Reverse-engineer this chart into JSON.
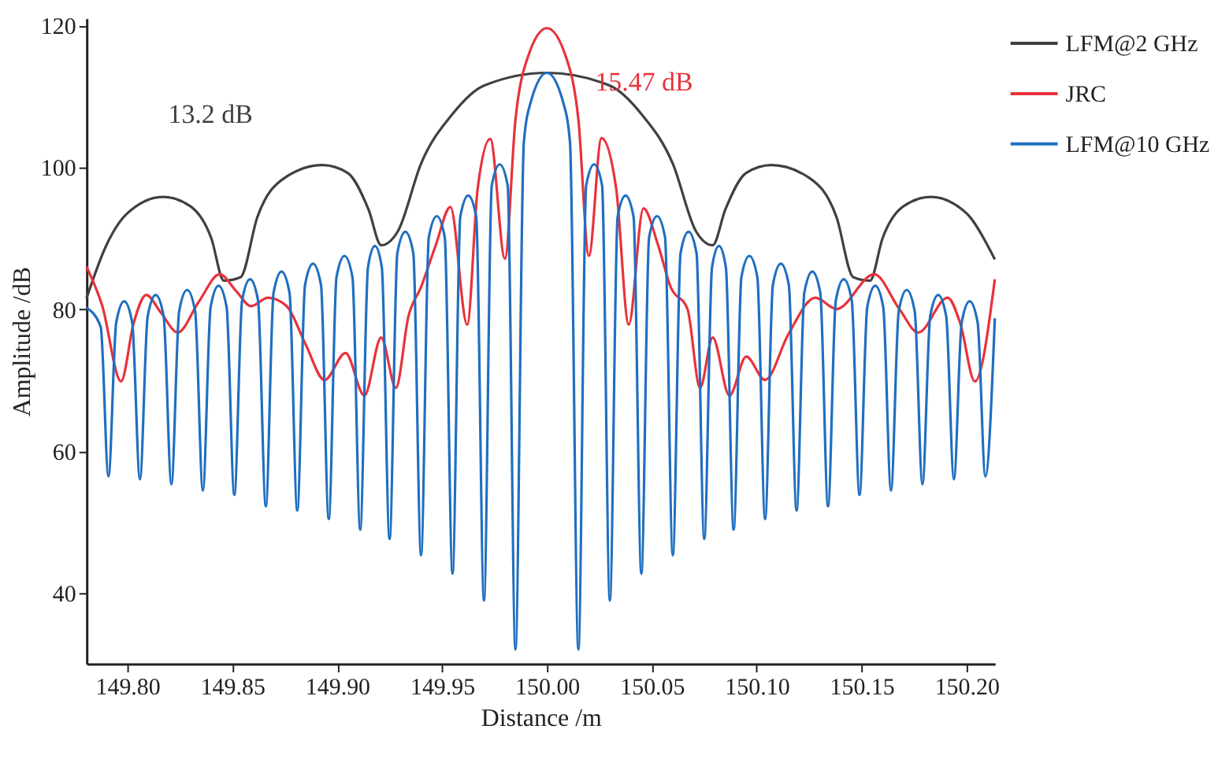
{
  "chart_data": {
    "type": "line",
    "xlabel": "Distance /m",
    "ylabel": "Amplitude /dB",
    "xlim": [
      149.7805,
      150.2135
    ],
    "ylim": [
      30,
      121
    ],
    "xticks": [
      {
        "value": 149.8,
        "label": "149.80"
      },
      {
        "value": 149.85,
        "label": "149.85"
      },
      {
        "value": 149.9,
        "label": "149.90"
      },
      {
        "value": 149.95,
        "label": "149.95"
      },
      {
        "value": 150.0,
        "label": "150.00"
      },
      {
        "value": 150.05,
        "label": "150.05"
      },
      {
        "value": 150.1,
        "label": "150.10"
      },
      {
        "value": 150.15,
        "label": "150.15"
      },
      {
        "value": 150.2,
        "label": "150.20"
      }
    ],
    "yticks": [
      40,
      60,
      80,
      100,
      120
    ],
    "grid": false,
    "legend": "top right",
    "marker": "none",
    "line_style": "solid",
    "annotations": [
      "13.2 dB",
      "15.47 dB"
    ],
    "series": [
      {
        "name": "LFM@2 GHz",
        "color": "#404040",
        "x": [
          149.7805,
          149.79,
          149.8,
          149.817,
          149.83,
          149.84,
          149.846,
          149.854,
          149.862,
          149.875,
          149.893,
          149.905,
          149.915,
          149.921,
          149.929,
          149.94,
          149.955,
          149.97,
          150.0,
          150.03,
          150.045,
          150.06,
          150.071,
          150.079,
          150.085,
          150.095,
          150.107,
          150.125,
          150.138,
          150.146,
          150.154,
          150.16,
          150.17,
          150.183,
          150.2,
          150.21,
          150.2135
        ],
        "values": [
          81.5,
          89,
          93.5,
          95.8,
          94.5,
          90,
          84,
          84.5,
          93,
          98.5,
          100.3,
          99.2,
          94,
          89,
          91,
          100.5,
          107.5,
          111.5,
          113.3,
          111.5,
          107.5,
          100.5,
          91,
          89,
          94,
          99.2,
          100.3,
          98.5,
          93,
          84.5,
          84,
          90,
          94.5,
          95.8,
          93.5,
          89,
          87
        ]
      },
      {
        "name": "JRC",
        "color": "#e8323c",
        "x": [
          149.7805,
          149.788,
          149.797,
          149.803,
          149.809,
          149.816,
          149.824,
          149.834,
          149.844,
          149.852,
          149.859,
          149.867,
          149.876,
          149.885,
          149.894,
          149.904,
          149.913,
          149.921,
          149.928,
          149.934,
          149.94,
          149.947,
          149.954,
          149.962,
          149.967,
          149.973,
          149.98,
          149.985,
          149.991,
          150.0,
          150.009,
          150.015,
          150.02,
          150.026,
          150.033,
          150.039,
          150.046,
          150.053,
          150.059,
          150.067,
          150.073,
          150.079,
          150.087,
          150.095,
          150.104,
          150.115,
          150.128,
          150.138,
          150.156,
          150.168,
          150.177,
          150.191,
          150.197,
          150.204,
          150.2135
        ],
        "values": [
          86,
          80.5,
          69.8,
          78,
          82,
          79.5,
          76.7,
          81,
          84.9,
          82.5,
          80.4,
          81.6,
          80.4,
          75,
          70,
          73.8,
          67.8,
          76,
          68.9,
          79,
          83.1,
          89,
          94.4,
          77.8,
          97,
          104,
          87.1,
          106.7,
          115.6,
          119.6,
          115.6,
          106.7,
          87.5,
          104.1,
          97,
          77.8,
          94.2,
          89,
          83.1,
          80,
          68.9,
          76,
          67.8,
          73.3,
          70,
          76.4,
          81.6,
          80,
          84.9,
          80,
          76.7,
          81.6,
          78,
          69.8,
          84.2
        ]
      },
      {
        "name": "LFM@10 GHz",
        "color": "#1f6fc0",
        "x": [
          149.7805,
          149.7873,
          149.791,
          149.7947,
          149.7985,
          149.8023,
          149.806,
          149.8097,
          149.8135,
          149.8173,
          149.821,
          149.8247,
          149.8285,
          149.8323,
          149.836,
          149.8397,
          149.8435,
          149.8473,
          149.851,
          149.8547,
          149.8585,
          149.8623,
          149.866,
          149.8697,
          149.8735,
          149.8773,
          149.881,
          149.8847,
          149.8885,
          149.8923,
          149.896,
          149.8997,
          149.9035,
          149.9073,
          149.911,
          149.9147,
          149.918,
          149.9213,
          149.925,
          149.9287,
          149.9325,
          149.9363,
          149.94,
          149.9437,
          149.9475,
          149.9513,
          149.955,
          149.9587,
          149.9625,
          149.9663,
          149.97,
          149.9737,
          149.9775,
          149.9813,
          149.985,
          149.989,
          149.9925,
          150.0,
          150.0075,
          150.011,
          150.015,
          150.0187,
          150.0225,
          150.0263,
          150.03,
          150.0337,
          150.0375,
          150.0413,
          150.045,
          150.0487,
          150.0525,
          150.0563,
          150.06,
          150.0637,
          150.0675,
          150.0713,
          150.075,
          150.0787,
          150.082,
          150.0853,
          150.089,
          150.0927,
          150.0965,
          150.1003,
          150.104,
          150.1077,
          150.1115,
          150.1153,
          150.119,
          150.1227,
          150.1265,
          150.1303,
          150.134,
          150.1377,
          150.1415,
          150.1453,
          150.149,
          150.1527,
          150.1565,
          150.1603,
          150.164,
          150.1677,
          150.1715,
          150.1753,
          150.179,
          150.1827,
          150.1865,
          150.1903,
          150.194,
          150.1977,
          150.2015,
          150.2053,
          150.209,
          150.2135
        ],
        "values": [
          80.2,
          77.5,
          56.4,
          78.1,
          81.1,
          78.1,
          56,
          79,
          82,
          79,
          55.3,
          79.7,
          82.7,
          79.7,
          54.4,
          80.3,
          83.3,
          80.3,
          53.8,
          81.2,
          84.2,
          81.2,
          52.2,
          82.3,
          85.3,
          82.3,
          51.6,
          83.4,
          86.4,
          83.4,
          50.4,
          84.5,
          87.5,
          84.5,
          48.9,
          85.9,
          88.9,
          85.9,
          47.6,
          87.9,
          90.9,
          87.9,
          45.3,
          90.1,
          93.1,
          90.1,
          42.7,
          93,
          96,
          93,
          38.9,
          97.4,
          100.4,
          97.4,
          32,
          103.5,
          109.4,
          113.3,
          109.4,
          103.5,
          32,
          97.4,
          100.4,
          97.4,
          38.9,
          93,
          96,
          93,
          42.7,
          90.1,
          93.1,
          90.1,
          45.3,
          87.9,
          90.9,
          87.9,
          47.6,
          85.9,
          88.9,
          85.9,
          48.9,
          84.5,
          87.5,
          84.5,
          50.4,
          83.4,
          86.4,
          83.4,
          51.6,
          82.3,
          85.3,
          82.3,
          52.2,
          81.2,
          84.2,
          81.2,
          53.8,
          80.3,
          83.3,
          80.3,
          54.4,
          79.7,
          82.7,
          79.7,
          55.3,
          79,
          82,
          79,
          56,
          78.1,
          81.1,
          78.1,
          56.4,
          78.7
        ]
      }
    ]
  }
}
